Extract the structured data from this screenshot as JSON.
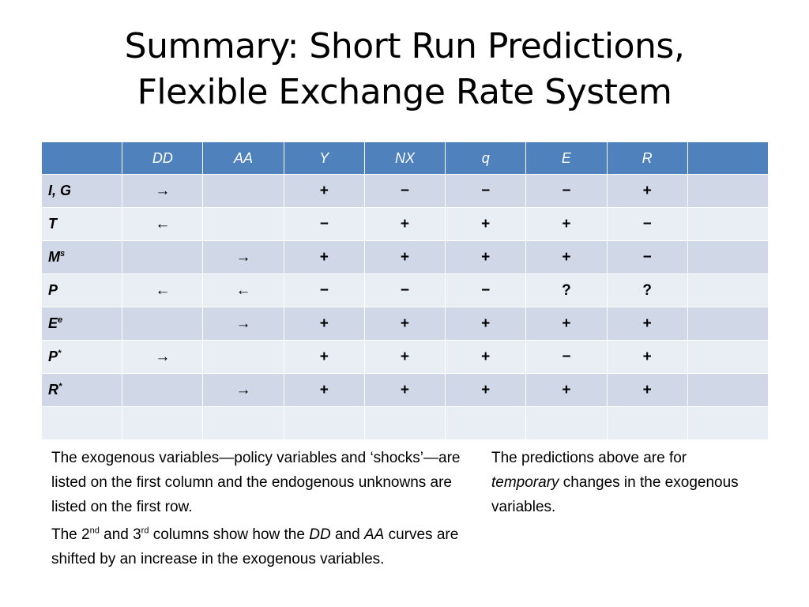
{
  "title": {
    "line1": "Summary: Short Run Predictions,",
    "line2": "Flexible Exchange Rate System"
  },
  "table": {
    "header": [
      "",
      "DD",
      "AA",
      "Y",
      "NX",
      "q",
      "E",
      "R",
      ""
    ],
    "rows": [
      {
        "base": "I, G",
        "sup": "",
        "cells": [
          "→",
          "",
          "+",
          "−",
          "−",
          "−",
          "+",
          ""
        ]
      },
      {
        "base": "T",
        "sup": "",
        "cells": [
          "←",
          "",
          "−",
          "+",
          "+",
          "+",
          "−",
          ""
        ]
      },
      {
        "base": "M",
        "sup": "s",
        "cells": [
          "",
          "→",
          "+",
          "+",
          "+",
          "+",
          "−",
          ""
        ]
      },
      {
        "base": "P",
        "sup": "",
        "cells": [
          "←",
          "←",
          "−",
          "−",
          "−",
          "?",
          "?",
          ""
        ]
      },
      {
        "base": "E",
        "sup": "e",
        "cells": [
          "",
          "→",
          "+",
          "+",
          "+",
          "+",
          "+",
          ""
        ]
      },
      {
        "base": "P",
        "sup": "*",
        "cells": [
          "→",
          "",
          "+",
          "+",
          "+",
          "−",
          "+",
          ""
        ]
      },
      {
        "base": "R",
        "sup": "*",
        "cells": [
          "",
          "→",
          "+",
          "+",
          "+",
          "+",
          "+",
          ""
        ]
      },
      {
        "base": "",
        "sup": "",
        "cells": [
          "",
          "",
          "",
          "",
          "",
          "",
          "",
          ""
        ]
      }
    ]
  },
  "notes": {
    "left_p1": "The exogenous variables—policy variables and ‘shocks’—are listed on the first column and the endogenous unknowns are listed on the first row.",
    "left_p2": {
      "t1": "The 2",
      "s1": "nd",
      "t2": " and 3",
      "s2": "rd",
      "t3": " columns show how the ",
      "em1": "DD",
      "t4": " and ",
      "em2": "AA",
      "t5": " curves are shifted by an increase in the exogenous variables."
    },
    "right": {
      "t1": "The predictions above are for ",
      "em": "temporary",
      "t2": " changes in the exogenous variables."
    }
  }
}
